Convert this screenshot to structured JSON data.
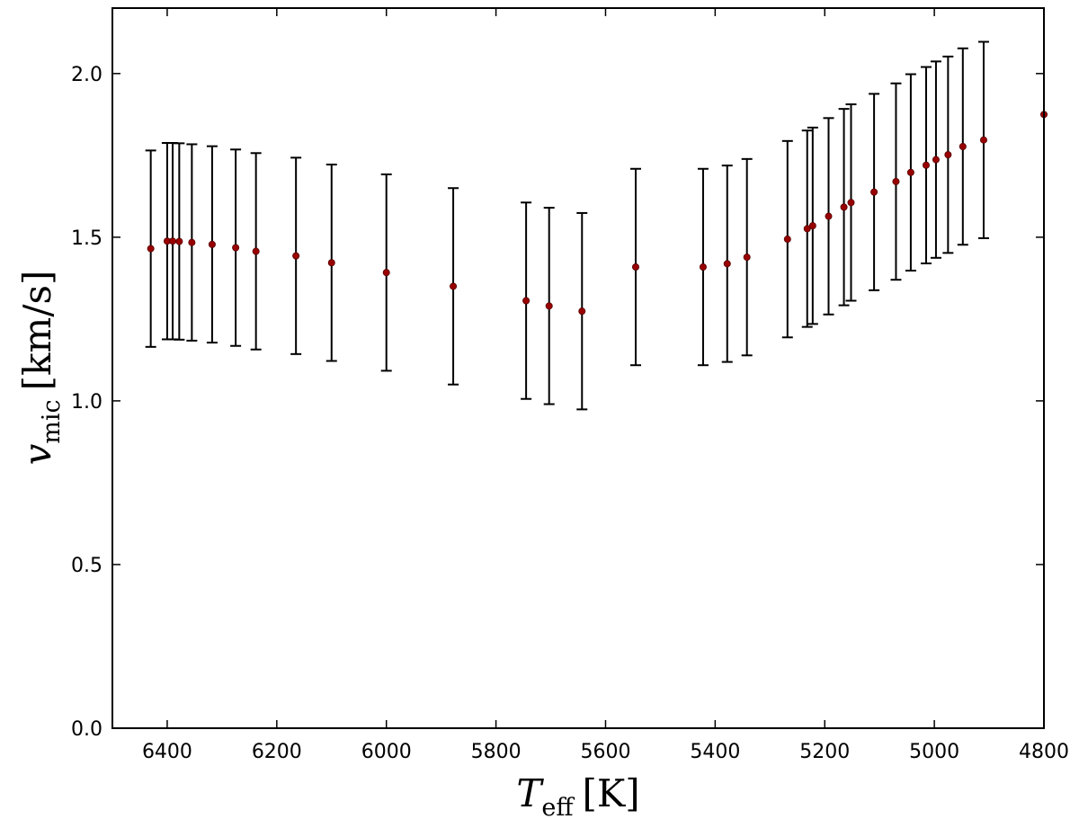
{
  "chart_data": {
    "type": "scatter",
    "xlabel": "T",
    "xlabel_sub": "eff",
    "xlabel_unit": "[K]",
    "ylabel": "v",
    "ylabel_sub": "mic",
    "ylabel_unit": "[km/s]",
    "xlim": [
      6500,
      4800
    ],
    "ylim": [
      0.0,
      2.2
    ],
    "x_inverted": true,
    "xticks": [
      6400,
      6200,
      6000,
      5800,
      5600,
      5400,
      5200,
      5000,
      4800
    ],
    "yticks": [
      0.0,
      0.5,
      1.0,
      1.5,
      2.0
    ],
    "ytick_labels": [
      "0.0",
      "0.5",
      "1.0",
      "1.5",
      "2.0"
    ],
    "grid": false,
    "marker_color": "#990000",
    "errorbar_color": "#000000",
    "errorbar_halfwidth": 0.3,
    "series": [
      {
        "x": [
          6430,
          6400,
          6390,
          6378,
          6355,
          6318,
          6275,
          6238,
          6165,
          6100,
          6000,
          5878,
          5745,
          5703,
          5643,
          5545,
          5422,
          5378,
          5342,
          5268,
          5232,
          5222,
          5193,
          5165,
          5152,
          5110,
          5070,
          5043,
          5015,
          4997,
          4975,
          4948,
          4910,
          4800
        ],
        "y": [
          1.465,
          1.488,
          1.488,
          1.487,
          1.484,
          1.478,
          1.468,
          1.457,
          1.443,
          1.422,
          1.392,
          1.35,
          1.306,
          1.29,
          1.274,
          1.409,
          1.409,
          1.419,
          1.439,
          1.494,
          1.526,
          1.535,
          1.564,
          1.592,
          1.606,
          1.638,
          1.67,
          1.698,
          1.72,
          1.737,
          1.752,
          1.777,
          1.797,
          1.875
        ]
      }
    ]
  }
}
